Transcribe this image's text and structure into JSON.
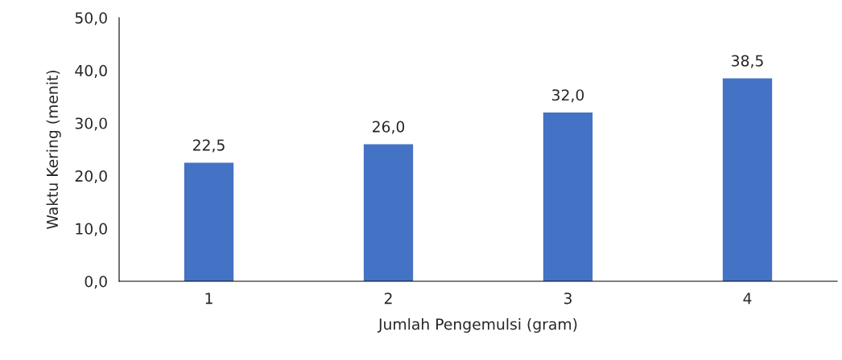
{
  "chart_data": {
    "type": "bar",
    "xlabel": "Jumlah Pengemulsi (gram)",
    "ylabel": "Waktu Kering (menit)",
    "categories": [
      "1",
      "2",
      "3",
      "4"
    ],
    "values": [
      22.5,
      26.0,
      32.0,
      38.5
    ],
    "value_labels": [
      "22,5",
      "26,0",
      "32,0",
      "38,5"
    ],
    "color": "#4472c4",
    "ylim": [
      0,
      50
    ],
    "yticks": [
      {
        "value": 0,
        "label": "0,0"
      },
      {
        "value": 10,
        "label": "10,0"
      },
      {
        "value": 20,
        "label": "20,0"
      },
      {
        "value": 30,
        "label": "30,0"
      },
      {
        "value": 40,
        "label": "40,0"
      },
      {
        "value": 50,
        "label": "50,0"
      }
    ],
    "grid": false,
    "legend": false
  }
}
